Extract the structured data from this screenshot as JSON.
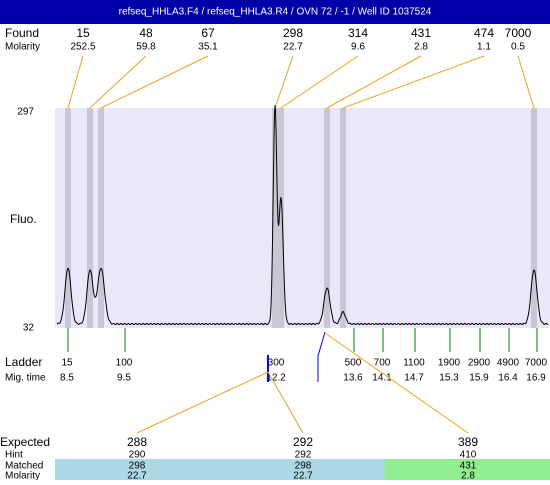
{
  "header": {
    "title": "refseq_HHLA3.F4 / refseq_HHLA3.R4 / OVN 72 / -1 / Well ID 1037524"
  },
  "found": {
    "label": "Found",
    "sublabel": "Molarity",
    "peaks": [
      {
        "size": "15",
        "molarity": "252.5"
      },
      {
        "size": "48",
        "molarity": "59.8"
      },
      {
        "size": "67",
        "molarity": "35.1"
      },
      {
        "size": "298",
        "molarity": "22.7"
      },
      {
        "size": "314",
        "molarity": "9.6"
      },
      {
        "size": "431",
        "molarity": "2.8"
      },
      {
        "size": "474",
        "molarity": "1.1"
      },
      {
        "size": "7000",
        "molarity": "0.5"
      }
    ]
  },
  "plot": {
    "ymax": "297",
    "ymin": "32",
    "ylabel": "Fluo."
  },
  "ladder": {
    "label": "Ladder",
    "sublabel": "Mig. time",
    "items": [
      {
        "size": "15",
        "time": "8.5"
      },
      {
        "size": "100",
        "time": "9.5"
      },
      {
        "size": "300",
        "time": "12.2"
      },
      {
        "size": "500",
        "time": "13.6"
      },
      {
        "size": "700",
        "time": "14.1"
      },
      {
        "size": "1100",
        "time": "14.7"
      },
      {
        "size": "1900",
        "time": "15.3"
      },
      {
        "size": "2900",
        "time": "15.9"
      },
      {
        "size": "4900",
        "time": "16.4"
      },
      {
        "size": "7000",
        "time": "16.9"
      }
    ]
  },
  "expected": {
    "labels": [
      "Expected",
      "Hint",
      "Matched",
      "Molarity"
    ],
    "items": [
      {
        "expected": "288",
        "hint": "290",
        "matched": "298",
        "molarity": "22.7"
      },
      {
        "expected": "292",
        "hint": "292",
        "matched": "298",
        "molarity": "22.7"
      },
      {
        "expected": "389",
        "hint": "410",
        "matched": "431",
        "molarity": "2.8"
      }
    ]
  }
}
